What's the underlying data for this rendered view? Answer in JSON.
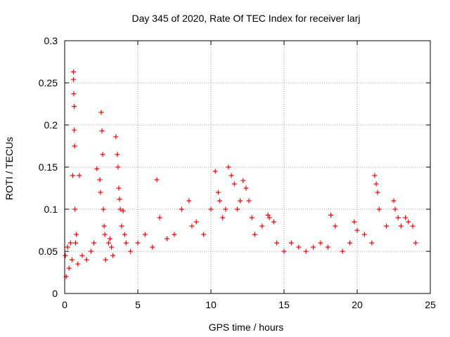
{
  "chart_data": {
    "type": "scatter",
    "title": "Day 345 of 2020, Rate Of TEC Index for receiver larj",
    "xlabel": "GPS time / hours",
    "ylabel": "ROTI / TECUs",
    "xlim": [
      0,
      25
    ],
    "ylim": [
      0,
      0.3
    ],
    "grid": true,
    "marker": "+",
    "colors": {
      "series": "#ff0000",
      "grid": "#a0a0a0",
      "axis": "#000000"
    },
    "x_ticks": [
      "0",
      "5",
      "10",
      "15",
      "20",
      "25"
    ],
    "y_ticks": [
      "0",
      "0.05",
      "0.1",
      "0.15",
      "0.2",
      "0.25",
      "0.3"
    ],
    "series": [
      {
        "x": [
          0.05,
          0.1,
          0.2,
          0.3,
          0.4,
          0.5,
          0.55,
          0.6,
          0.6,
          0.62,
          0.65,
          0.65,
          0.68,
          0.7,
          0.75,
          0.8,
          0.9,
          1.0,
          1.2,
          1.5,
          1.8,
          2.0,
          2.2,
          2.4,
          2.45,
          2.5,
          2.55,
          2.6,
          2.65,
          2.7,
          2.75,
          2.8,
          3.0,
          3.1,
          3.2,
          3.3,
          3.5,
          3.6,
          3.65,
          3.7,
          3.75,
          3.8,
          3.9,
          4.0,
          4.1,
          4.2,
          4.5,
          5.0,
          5.5,
          6.0,
          6.3,
          6.5,
          7.0,
          7.5,
          8.0,
          8.5,
          8.7,
          9.0,
          9.5,
          10.0,
          10.3,
          10.5,
          10.6,
          10.8,
          11.0,
          11.2,
          11.4,
          11.6,
          11.8,
          12.0,
          12.2,
          12.4,
          12.6,
          12.8,
          13.0,
          13.5,
          13.9,
          14.0,
          14.3,
          14.5,
          15.0,
          15.5,
          16.0,
          16.5,
          17.0,
          17.5,
          18.0,
          18.2,
          18.5,
          19.0,
          19.5,
          19.8,
          20.0,
          20.5,
          21.0,
          21.2,
          21.3,
          21.4,
          21.5,
          22.0,
          22.5,
          22.6,
          22.8,
          23.0,
          23.3,
          23.5,
          23.8,
          24.0
        ],
        "y": [
          0.045,
          0.02,
          0.055,
          0.03,
          0.06,
          0.04,
          0.14,
          0.263,
          0.254,
          0.237,
          0.222,
          0.194,
          0.175,
          0.1,
          0.06,
          0.07,
          0.035,
          0.14,
          0.045,
          0.04,
          0.05,
          0.06,
          0.148,
          0.135,
          0.12,
          0.215,
          0.193,
          0.165,
          0.1,
          0.08,
          0.07,
          0.04,
          0.06,
          0.065,
          0.055,
          0.045,
          0.186,
          0.165,
          0.15,
          0.125,
          0.112,
          0.1,
          0.08,
          0.098,
          0.07,
          0.06,
          0.05,
          0.06,
          0.07,
          0.055,
          0.135,
          0.09,
          0.065,
          0.07,
          0.1,
          0.11,
          0.08,
          0.085,
          0.07,
          0.1,
          0.145,
          0.12,
          0.11,
          0.09,
          0.1,
          0.15,
          0.14,
          0.13,
          0.1,
          0.11,
          0.134,
          0.125,
          0.11,
          0.09,
          0.07,
          0.08,
          0.093,
          0.09,
          0.085,
          0.06,
          0.05,
          0.06,
          0.055,
          0.05,
          0.055,
          0.06,
          0.055,
          0.093,
          0.08,
          0.05,
          0.06,
          0.085,
          0.075,
          0.07,
          0.06,
          0.14,
          0.13,
          0.12,
          0.1,
          0.08,
          0.11,
          0.1,
          0.09,
          0.08,
          0.09,
          0.085,
          0.08,
          0.06
        ]
      }
    ]
  }
}
